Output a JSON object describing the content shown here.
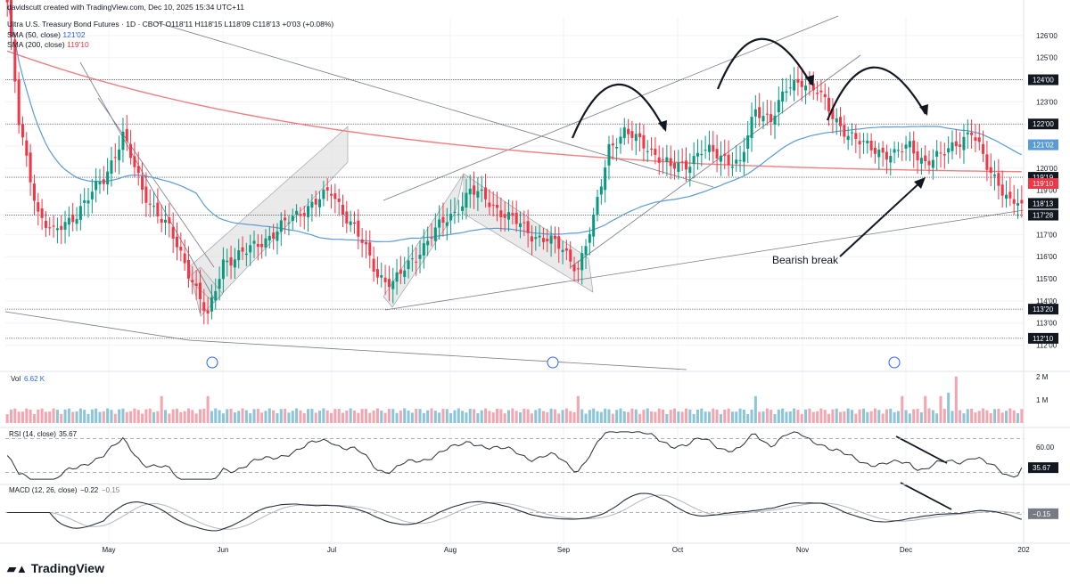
{
  "header": {
    "creator_line": "davidscutt created with TradingView.com, Dec 10, 2025 15:34 UTC+11",
    "symbol_line": "Ultra U.S. Treasury Bond Futures · 1D · CBOT  O118'11  H118'15  L118'09  C118'13  +0'03 (+0.08%)",
    "sma50_label": "SMA (50, close)",
    "sma50_value": "121'02",
    "sma200_label": "SMA (200, close)",
    "sma200_value": "119'10"
  },
  "colors": {
    "up": "#089981",
    "down": "#f23645",
    "sma50": "#5b9bd5",
    "sma200": "#f07e7e",
    "vol_up": "#8cc4d8",
    "vol_down": "#f3a6b0",
    "osc": "#2a2e39"
  },
  "annotations": {
    "bearish_break": "Bearish break"
  },
  "footer": {
    "brand": "TradingView"
  },
  "chart_data": [
    {
      "type": "candlestick",
      "x_axis": [
        "May",
        "Jun",
        "Jul",
        "Aug",
        "Sep",
        "Oct",
        "Nov",
        "Dec",
        "202"
      ],
      "y_ticks": [
        "126'00",
        "125'00",
        "124'00",
        "123'00",
        "122'00",
        "121'00",
        "120'00",
        "119'00",
        "118'00",
        "117'00",
        "116'00",
        "115'00",
        "114'00",
        "113'00",
        "112'00"
      ],
      "ylim": [
        111.5,
        126.8
      ],
      "price_labels": [
        {
          "text": "124'00",
          "value": 124.0,
          "style": "dark"
        },
        {
          "text": "122'00",
          "value": 122.0,
          "style": "dark"
        },
        {
          "text": "121'02",
          "value": 121.06,
          "style": "sma50"
        },
        {
          "text": "119'19",
          "value": 119.59,
          "style": "dark"
        },
        {
          "text": "119'10",
          "value": 119.31,
          "style": "sma200"
        },
        {
          "text": "118'13",
          "value": 118.41,
          "style": "dark"
        },
        {
          "text": "117'28",
          "value": 117.88,
          "style": "dark"
        },
        {
          "text": "113'20",
          "value": 113.63,
          "style": "dark"
        },
        {
          "text": "112'10",
          "value": 112.31,
          "style": "dark"
        }
      ],
      "horizontal_levels": [
        124.0,
        122.0,
        119.59,
        117.88,
        113.63,
        112.31
      ],
      "close_waypoints": [
        [
          0,
          127.5
        ],
        [
          3,
          122.0
        ],
        [
          8,
          118.0
        ],
        [
          12,
          117.0
        ],
        [
          18,
          118.0
        ],
        [
          25,
          119.5
        ],
        [
          30,
          121.5
        ],
        [
          35,
          119.0
        ],
        [
          42,
          117.2
        ],
        [
          48,
          115.0
        ],
        [
          52,
          113.2
        ],
        [
          56,
          115.8
        ],
        [
          62,
          116.2
        ],
        [
          70,
          117.2
        ],
        [
          78,
          118.3
        ],
        [
          84,
          118.9
        ],
        [
          90,
          117.3
        ],
        [
          96,
          115.2
        ],
        [
          100,
          114.8
        ],
        [
          104,
          115.6
        ],
        [
          110,
          117.0
        ],
        [
          116,
          118.0
        ],
        [
          120,
          119.0
        ],
        [
          124,
          118.6
        ],
        [
          130,
          117.8
        ],
        [
          136,
          117.0
        ],
        [
          140,
          116.8
        ],
        [
          144,
          116.3
        ],
        [
          148,
          115.5
        ],
        [
          152,
          117.6
        ],
        [
          156,
          121.0
        ],
        [
          160,
          121.6
        ],
        [
          166,
          121.0
        ],
        [
          172,
          120.0
        ],
        [
          176,
          120.2
        ],
        [
          180,
          120.8
        ],
        [
          186,
          120.5
        ],
        [
          190,
          120.2
        ],
        [
          194,
          122.6
        ],
        [
          198,
          122.3
        ],
        [
          202,
          123.5
        ],
        [
          206,
          124.0
        ],
        [
          210,
          123.5
        ],
        [
          214,
          122.3
        ],
        [
          218,
          121.6
        ],
        [
          222,
          121.0
        ],
        [
          226,
          120.8
        ],
        [
          230,
          120.6
        ],
        [
          234,
          121.0
        ],
        [
          238,
          120.3
        ],
        [
          242,
          120.5
        ],
        [
          246,
          121.2
        ],
        [
          250,
          121.6
        ],
        [
          254,
          120.1
        ],
        [
          257,
          119.4
        ],
        [
          260,
          118.4
        ],
        [
          263,
          118.41
        ]
      ],
      "volume": {
        "ylim": [
          0,
          2000000
        ],
        "y_ticks": [
          "2 M",
          "1 M"
        ],
        "last_value": "6.62 K",
        "series_label": "Vol"
      },
      "rsi": {
        "label": "RSI (14, close)",
        "last_value": "35.67",
        "y_ticks": [
          "60.00"
        ]
      },
      "macd": {
        "label": "MACD (12, 26, close)",
        "macd_value": "−0.22",
        "signal_value": "−0.15",
        "y_ticks": [
          "0.00"
        ],
        "last_label": "−0.15"
      }
    }
  ]
}
